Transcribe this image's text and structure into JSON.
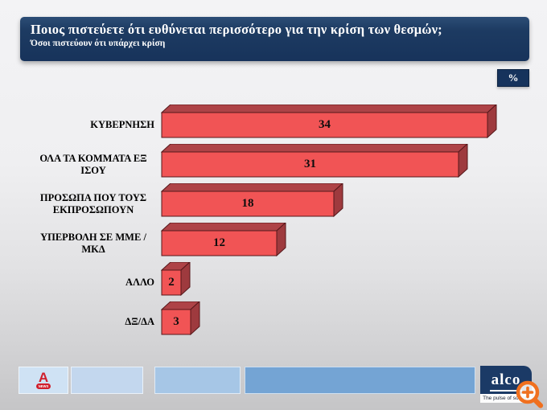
{
  "header": {
    "title": "Ποιος πιστεύετε ότι ευθύνεται περισσότερο για την κρίση των θεσμών;",
    "subtitle": "Όσοι πιστεύουν ότι υπάρχει κρίση"
  },
  "unit_badge_label": "%",
  "chart_data": {
    "type": "bar",
    "orientation": "horizontal",
    "title": "Ποιος πιστεύετε ότι ευθύνεται περισσότερο για την κρίση των θεσμών;",
    "subtitle": "Όσοι πιστεύουν ότι υπάρχει κρίση",
    "unit": "%",
    "categories": [
      "ΚΥΒΕΡΝΗΣΗ",
      "ΟΛΑ ΤΑ ΚΟΜΜΑΤΑ ΕΞ ΙΣΟΥ",
      "ΠΡΟΣΩΠΑ ΠΟΥ ΤΟΥΣ ΕΚΠΡΟΣΩΠΟΥΝ",
      "ΥΠΕΡΒΟΛΗ ΣΕ ΜΜΕ / ΜΚΔ",
      "ΑΛΛΟ",
      "ΔΞ/ΔΑ"
    ],
    "values": [
      34,
      31,
      18,
      12,
      2,
      3
    ],
    "xlim": [
      0,
      35
    ],
    "data_labels": "inside-center",
    "legend": "none",
    "grid": "off",
    "bar_style_3d": true,
    "bar_colors": {
      "front": "#f15455",
      "top": "#ae4347",
      "side": "#9e3a3e",
      "outline": "#56181b"
    }
  },
  "footer": {
    "alpha_logo": {
      "letter": "A",
      "badge_text": "NEWS",
      "color": "#d01f2c"
    },
    "alco_logo": {
      "name": "alco",
      "tagline": "The pulse of society",
      "bg": "#1b3a66"
    },
    "zoom_icon_color": "#f0701f"
  }
}
